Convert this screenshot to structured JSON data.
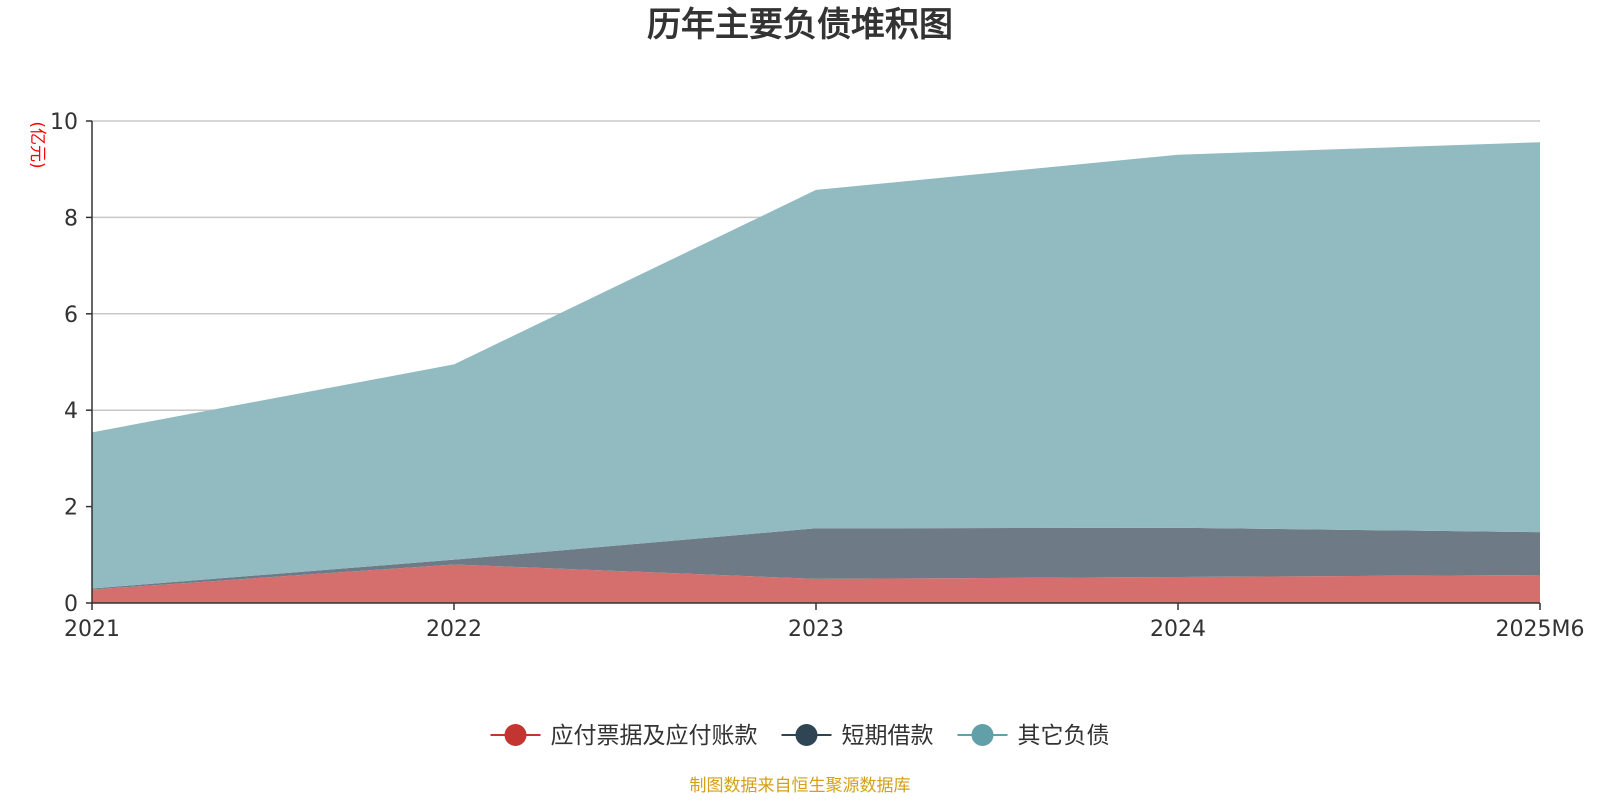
{
  "chart_data": {
    "type": "area",
    "title": "历年主要负债堆积图",
    "unit_label": "(亿元)",
    "categories": [
      "2021",
      "2022",
      "2023",
      "2024",
      "2025M6"
    ],
    "stacked": true,
    "ylim": [
      0,
      10
    ],
    "yticks": [
      0,
      2,
      4,
      6,
      8,
      10
    ],
    "grid": true,
    "legend_position": "bottom",
    "series": [
      {
        "name": "应付票据及应付账款",
        "values": [
          0.28,
          0.8,
          0.5,
          0.54,
          0.58
        ],
        "color": "#c23531",
        "fill": "#d46f6d"
      },
      {
        "name": "短期借款",
        "values": [
          0.02,
          0.1,
          1.05,
          1.02,
          0.89
        ],
        "color": "#2f4554",
        "fill": "#6e7b87"
      },
      {
        "name": "其它负债",
        "values": [
          3.24,
          4.05,
          7.02,
          7.74,
          8.09
        ],
        "color": "#61a0a8",
        "fill": "#91bac1"
      }
    ]
  },
  "source_text": "制图数据来自恒生聚源数据库"
}
